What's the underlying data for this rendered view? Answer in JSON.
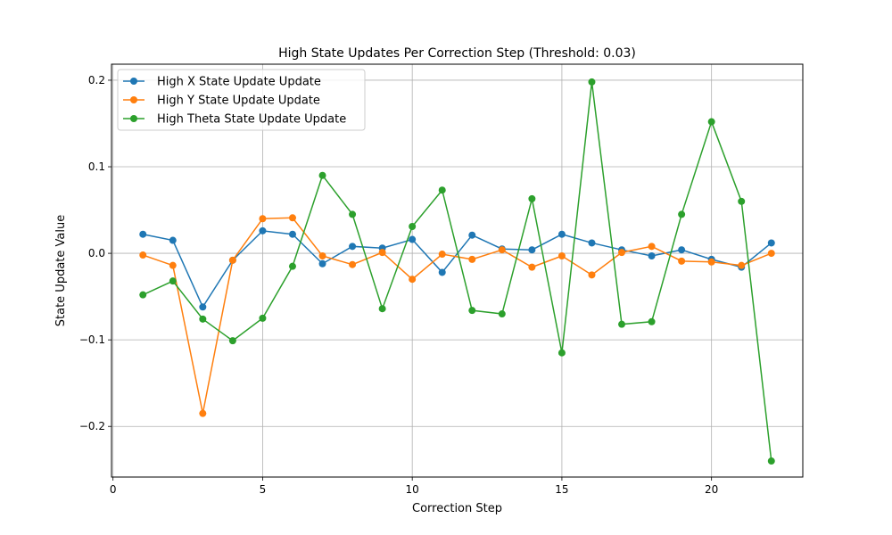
{
  "chart_data": {
    "type": "line",
    "title": "High State Updates Per Correction Step (Threshold: 0.03)",
    "xlabel": "Correction Step",
    "ylabel": "State Update Value",
    "xlim": [
      -0.05,
      23.05
    ],
    "ylim": [
      -0.2585,
      0.2185
    ],
    "xticks": [
      0,
      5,
      10,
      15,
      20
    ],
    "xtick_labels": [
      "0",
      "5",
      "10",
      "15",
      "20"
    ],
    "yticks": [
      -0.2,
      -0.1,
      0.0,
      0.1,
      0.2
    ],
    "ytick_labels": [
      "−0.2",
      "−0.1",
      "0.0",
      "0.1",
      "0.2"
    ],
    "grid": true,
    "legend_position": "upper-left",
    "x": [
      1,
      2,
      3,
      4,
      5,
      6,
      7,
      8,
      9,
      10,
      11,
      12,
      13,
      14,
      15,
      16,
      17,
      18,
      19,
      20,
      21,
      22
    ],
    "series": [
      {
        "name": "High X State Update Update",
        "color": "#1f77b4",
        "values": [
          0.022,
          0.015,
          -0.062,
          -0.008,
          0.026,
          0.022,
          -0.012,
          0.008,
          0.006,
          0.016,
          -0.022,
          0.021,
          0.005,
          0.004,
          0.022,
          0.012,
          0.004,
          -0.003,
          0.004,
          -0.007,
          -0.016,
          0.012
        ]
      },
      {
        "name": "High Y State Update Update",
        "color": "#ff7f0e",
        "values": [
          -0.002,
          -0.014,
          -0.185,
          -0.008,
          0.04,
          0.041,
          -0.003,
          -0.013,
          0.001,
          -0.03,
          -0.001,
          -0.007,
          0.004,
          -0.016,
          -0.003,
          -0.025,
          0.001,
          0.008,
          -0.009,
          -0.01,
          -0.014,
          0.0
        ]
      },
      {
        "name": "High Theta State Update Update",
        "color": "#2ca02c",
        "values": [
          -0.048,
          -0.032,
          -0.076,
          -0.101,
          -0.075,
          -0.015,
          0.09,
          0.045,
          -0.064,
          0.031,
          0.073,
          -0.066,
          -0.07,
          0.063,
          -0.115,
          0.198,
          -0.082,
          -0.079,
          0.045,
          0.152,
          0.06,
          -0.24
        ]
      }
    ]
  }
}
